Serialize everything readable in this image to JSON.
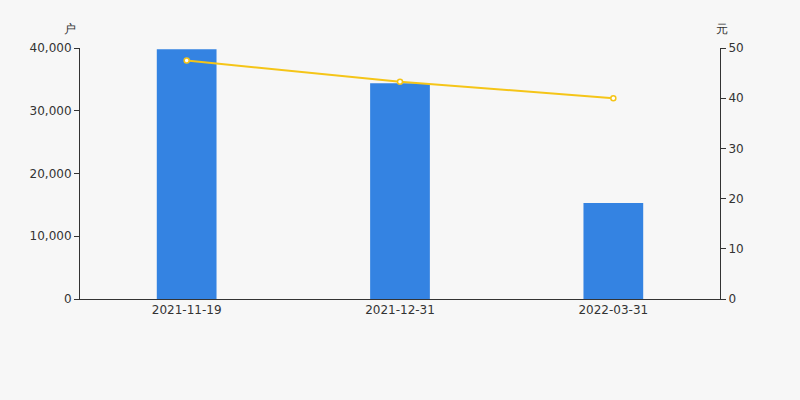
{
  "chart_data": {
    "type": "bar",
    "ylabel": "户",
    "y2label": "元",
    "categories": [
      "2021-11-19",
      "2021-12-31",
      "2022-03-31"
    ],
    "series": [
      {
        "type": "bar",
        "color": "#3483e2",
        "values": [
          39800,
          34400,
          15300
        ]
      },
      {
        "type": "line",
        "axis": "y2",
        "color": "#f5c518",
        "marker": "circle",
        "values": [
          47.5,
          43.3,
          40.0
        ]
      }
    ],
    "ylim": [
      0,
      40000
    ],
    "yticks": [
      0,
      {
        "value": 10000,
        "label": "10,000"
      },
      {
        "value": 20000,
        "label": "20,000"
      },
      {
        "value": 30000,
        "label": "30,000"
      },
      {
        "value": 40000,
        "label": "40,000"
      }
    ],
    "y2lim": [
      0,
      50
    ],
    "y2ticks": [
      0,
      10,
      20,
      30,
      40,
      50
    ],
    "grid": false
  }
}
